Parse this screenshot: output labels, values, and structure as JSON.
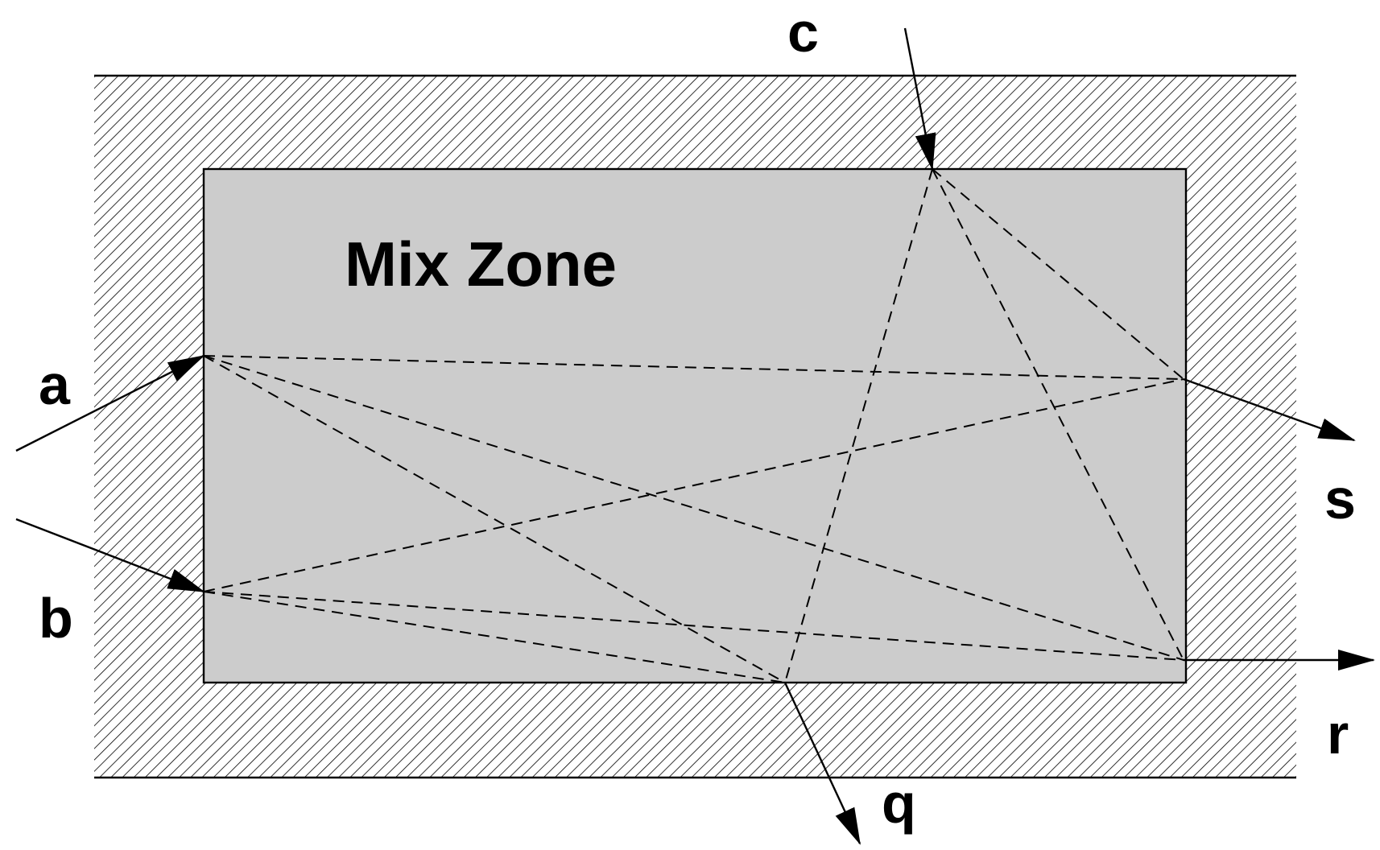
{
  "diagram": {
    "title": "Mix Zone",
    "colors": {
      "zone_fill": "#cccccc",
      "hatch": "#000000",
      "background": "#ffffff"
    },
    "labels": {
      "a": "a",
      "b": "b",
      "c": "c",
      "q": "q",
      "r": "r",
      "s": "s"
    },
    "entry_points": [
      "a",
      "b",
      "c"
    ],
    "exit_points": [
      "q",
      "r",
      "s"
    ],
    "paths": [
      {
        "from": "a",
        "to": "s"
      },
      {
        "from": "a",
        "to": "q"
      },
      {
        "from": "a",
        "to": "r"
      },
      {
        "from": "b",
        "to": "s"
      },
      {
        "from": "b",
        "to": "r"
      },
      {
        "from": "b",
        "to": "q"
      },
      {
        "from": "c",
        "to": "q"
      },
      {
        "from": "c",
        "to": "r"
      },
      {
        "from": "c",
        "to": "s"
      }
    ]
  }
}
